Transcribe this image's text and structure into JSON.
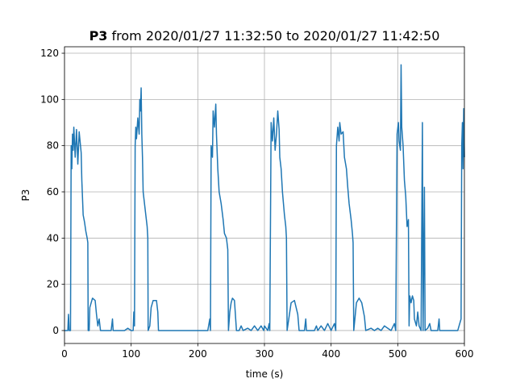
{
  "chart_data": {
    "type": "line",
    "title": {
      "bold": "P3",
      "text": "from 2020/01/27 11:32:50 to 2020/01/27 11:42:50"
    },
    "x_label": "time (s)",
    "y_label": "P3",
    "xlim": [
      0,
      600
    ],
    "xticks": [
      0,
      100,
      200,
      300,
      400,
      500,
      600
    ],
    "ylim": [
      -5.6,
      122.8
    ],
    "yticks": [
      0,
      20,
      40,
      60,
      80,
      100,
      120
    ],
    "grid": true,
    "series": [
      {
        "color": "#1f77b4",
        "x": [
          0,
          5,
          6,
          7,
          9,
          10,
          11,
          12,
          13,
          14,
          16,
          18,
          20,
          22,
          24,
          25,
          26,
          28,
          30,
          32,
          34,
          35,
          35.5,
          37,
          38,
          40,
          42,
          46,
          48,
          50,
          52,
          54,
          70,
          72,
          73,
          90,
          95,
          100,
          103,
          104,
          105,
          106,
          107,
          108,
          110,
          112,
          113,
          114,
          115,
          116,
          117,
          118,
          120,
          122,
          124,
          125,
          125.5,
          128,
          130,
          133,
          138,
          140,
          141,
          150,
          215,
          218,
          219,
          220,
          222,
          223,
          225,
          227,
          228,
          230,
          232,
          235,
          238,
          240,
          243,
          245,
          246,
          248,
          250,
          252,
          255,
          258,
          262,
          265,
          268,
          275,
          280,
          285,
          290,
          295,
          299,
          300,
          305,
          307,
          308,
          310,
          312,
          314,
          316,
          318,
          320,
          322,
          323,
          325,
          327,
          330,
          332,
          333,
          334,
          338,
          340,
          345,
          350,
          352,
          360,
          362,
          363,
          375,
          378,
          380,
          385,
          390,
          395,
          400,
          405,
          407,
          408,
          410,
          412,
          413,
          415,
          418,
          420,
          423,
          425,
          427,
          430,
          432,
          433,
          434,
          436,
          438,
          442,
          446,
          450,
          452,
          460,
          465,
          470,
          475,
          480,
          490,
          495,
          497,
          499,
          501,
          502,
          504,
          505,
          506,
          508,
          510,
          512,
          514,
          516,
          517,
          518,
          520,
          522,
          524,
          525,
          528,
          530,
          532,
          535,
          537,
          538,
          540,
          541,
          545,
          548,
          550,
          560,
          562,
          563,
          590,
          595,
          596,
          597,
          598,
          599,
          600
        ],
        "values": [
          0,
          0,
          7,
          0,
          0,
          80,
          70,
          85,
          78,
          88,
          75,
          87,
          72,
          86,
          80,
          77,
          65,
          50,
          47,
          43,
          40,
          38,
          0,
          0,
          10,
          12,
          14,
          13,
          7,
          2,
          5,
          0,
          0,
          5,
          0,
          0,
          1,
          0,
          0,
          8,
          2,
          80,
          88,
          83,
          92,
          85,
          100,
          95,
          105,
          85,
          75,
          60,
          55,
          50,
          45,
          40,
          0,
          2,
          10,
          13,
          13,
          8,
          0,
          0,
          0,
          5,
          0,
          80,
          75,
          95,
          88,
          98,
          85,
          70,
          60,
          55,
          48,
          42,
          40,
          35,
          0,
          8,
          12,
          14,
          13,
          0,
          0,
          2,
          0,
          1,
          0,
          2,
          0,
          2,
          0,
          2,
          0,
          3,
          0,
          90,
          82,
          92,
          78,
          85,
          95,
          87,
          75,
          70,
          60,
          50,
          45,
          40,
          0,
          8,
          12,
          13,
          7,
          0,
          0,
          5,
          0,
          0,
          2,
          0,
          2,
          0,
          3,
          0,
          3,
          0,
          80,
          88,
          82,
          90,
          85,
          86,
          75,
          70,
          62,
          55,
          48,
          42,
          38,
          0,
          6,
          12,
          14,
          12,
          6,
          0,
          1,
          0,
          1,
          0,
          2,
          0,
          3,
          0,
          85,
          90,
          82,
          78,
          115,
          88,
          80,
          65,
          58,
          45,
          48,
          2,
          15,
          12,
          15,
          13,
          5,
          2,
          8,
          2,
          0,
          90,
          0,
          62,
          0,
          1,
          3,
          0,
          0,
          5,
          0,
          0,
          5,
          80,
          90,
          70,
          96,
          75
        ]
      }
    ]
  }
}
